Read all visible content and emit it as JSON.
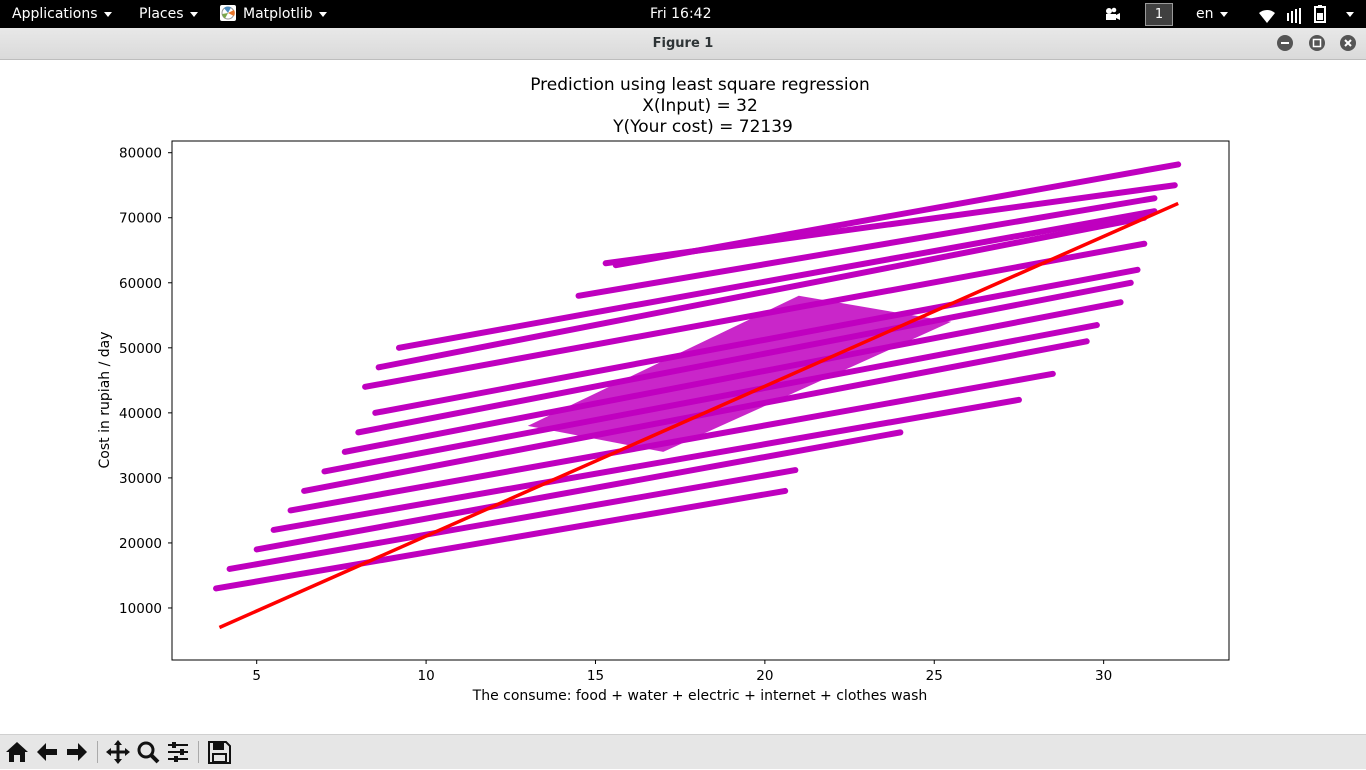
{
  "topbar": {
    "applications": "Applications",
    "places": "Places",
    "app_name": "Matplotlib",
    "clock": "Fri 16:42",
    "workspace": "1",
    "language": "en"
  },
  "window": {
    "title": "Figure 1"
  },
  "chart_data": {
    "type": "scatter",
    "title_lines": [
      "Prediction using least square regression",
      "X(Input) = 32",
      "Y(Your cost) = 72139"
    ],
    "xlabel": "The consume: food + water + electric + internet + clothes wash",
    "ylabel": "Cost in rupiah / day",
    "xlim": [
      2.5,
      33.7
    ],
    "ylim": [
      2000,
      81800
    ],
    "xticks": [
      5,
      10,
      15,
      20,
      25,
      30
    ],
    "yticks": [
      10000,
      20000,
      30000,
      40000,
      50000,
      60000,
      70000,
      80000
    ],
    "grid": false,
    "scatter_color": "#bf00bf",
    "line_color": "#ff0000",
    "scatter_lines": [
      {
        "x": [
          3.8,
          20.6
        ],
        "y": [
          13000,
          28000
        ]
      },
      {
        "x": [
          4.2,
          20.9
        ],
        "y": [
          16000,
          31200
        ]
      },
      {
        "x": [
          5.0,
          24.0
        ],
        "y": [
          19000,
          37000
        ]
      },
      {
        "x": [
          5.5,
          27.5
        ],
        "y": [
          22000,
          42000
        ]
      },
      {
        "x": [
          6.0,
          28.5
        ],
        "y": [
          25000,
          46000
        ]
      },
      {
        "x": [
          6.4,
          29.5
        ],
        "y": [
          28000,
          51000
        ]
      },
      {
        "x": [
          7.0,
          29.8
        ],
        "y": [
          31000,
          53500
        ]
      },
      {
        "x": [
          7.6,
          30.5
        ],
        "y": [
          34000,
          57000
        ]
      },
      {
        "x": [
          8.0,
          30.8
        ],
        "y": [
          37000,
          60000
        ]
      },
      {
        "x": [
          8.5,
          31.0
        ],
        "y": [
          40000,
          62000
        ]
      },
      {
        "x": [
          8.2,
          31.2
        ],
        "y": [
          44000,
          66000
        ]
      },
      {
        "x": [
          8.6,
          31.2
        ],
        "y": [
          47000,
          70000
        ]
      },
      {
        "x": [
          9.2,
          31.5
        ],
        "y": [
          50000,
          71000
        ]
      },
      {
        "x": [
          14.5,
          31.5
        ],
        "y": [
          58000,
          73000
        ]
      },
      {
        "x": [
          15.3,
          32.1
        ],
        "y": [
          63000,
          75000
        ]
      },
      {
        "x": [
          15.6,
          32.2
        ],
        "y": [
          62700,
          78200
        ]
      }
    ],
    "regression_line": {
      "x": [
        3.9,
        32.2
      ],
      "y": [
        7000,
        72200
      ]
    }
  },
  "toolbar": {
    "buttons": [
      "home-icon",
      "back-icon",
      "forward-icon",
      "pan-icon",
      "zoom-icon",
      "configure-icon",
      "save-icon"
    ]
  }
}
